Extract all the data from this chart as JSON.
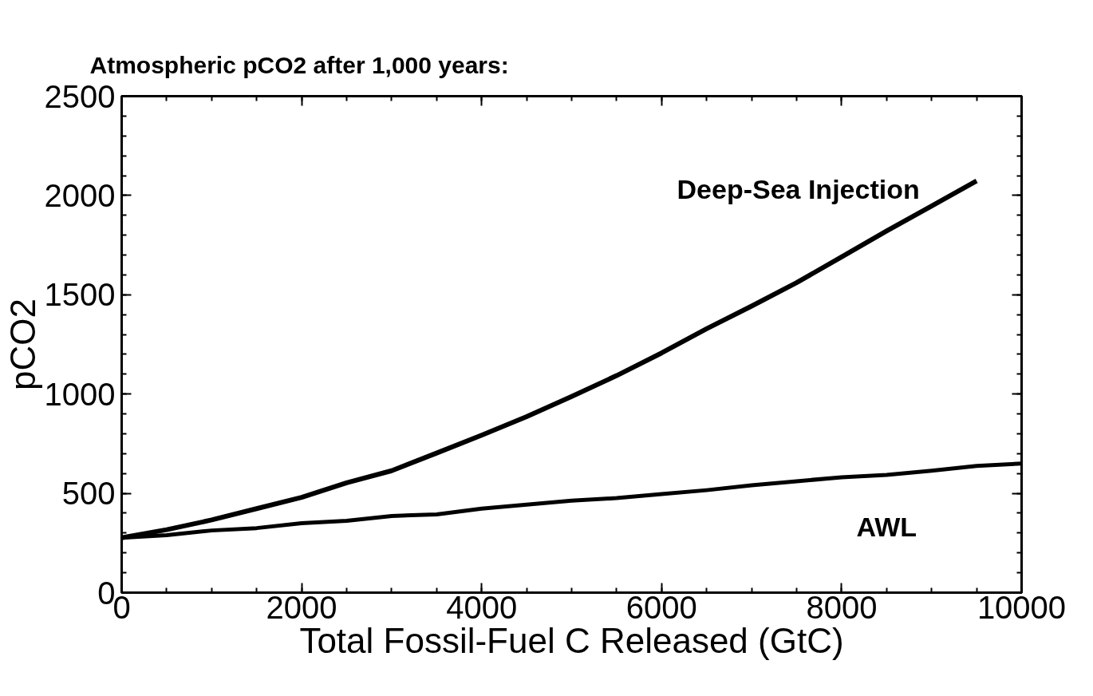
{
  "chart_data": {
    "type": "line",
    "title": "Atmospheric pCO2 after 1,000 years:",
    "xlabel": "Total Fossil-Fuel C Released (GtC)",
    "ylabel": "pCO2",
    "x": [
      0,
      500,
      1000,
      1500,
      2000,
      2500,
      3000,
      3500,
      4000,
      4500,
      5000,
      5500,
      6000,
      6500,
      7000,
      7500,
      8000,
      8500,
      9000,
      9500,
      10000
    ],
    "series": [
      {
        "name": "Deep-Sea Injection",
        "color": "#000000",
        "x": [
          0,
          500,
          1000,
          1500,
          2000,
          2500,
          3000,
          3500,
          4000,
          4500,
          5000,
          5500,
          6000,
          6500,
          7000,
          7500,
          8000,
          8500,
          9000,
          9500
        ],
        "values": [
          276,
          317,
          366,
          423,
          480,
          553,
          614,
          703,
          793,
          886,
          988,
          1093,
          1207,
          1329,
          1443,
          1561,
          1691,
          1821,
          1947,
          2073
        ]
      },
      {
        "name": "AWL",
        "color": "#000000",
        "values": [
          276,
          289,
          313,
          325,
          350,
          362,
          386,
          394,
          423,
          443,
          463,
          476,
          496,
          516,
          541,
          561,
          581,
          593,
          614,
          638,
          650
        ]
      }
    ],
    "xlim": [
      0,
      10000
    ],
    "xticks": [
      0,
      2000,
      4000,
      6000,
      8000,
      10000
    ],
    "ylim": [
      0,
      2500
    ],
    "yticks": [
      0,
      500,
      1000,
      1500,
      2000,
      2500
    ],
    "grid": false,
    "marker": "none",
    "line_style": "solid"
  }
}
